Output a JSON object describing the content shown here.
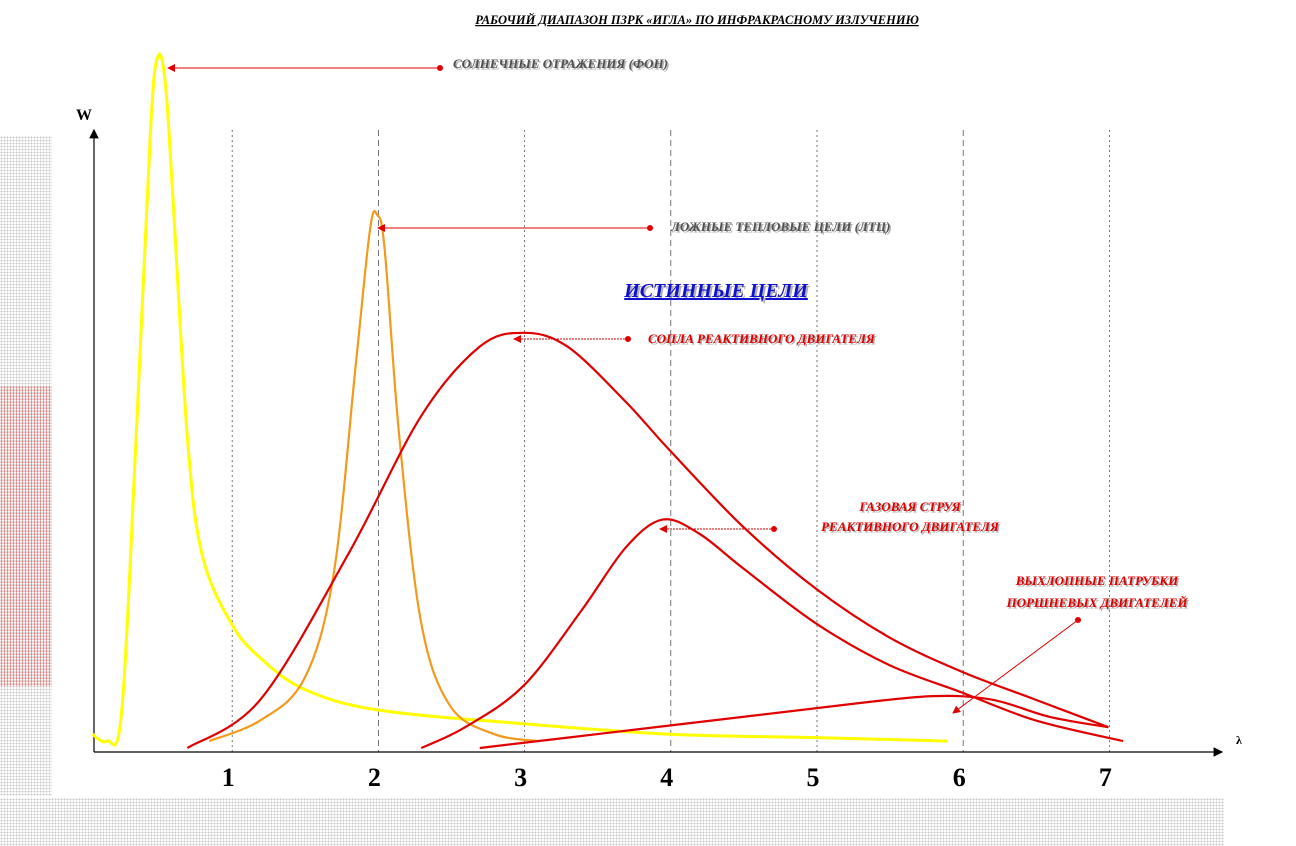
{
  "chart_data": {
    "type": "line",
    "title": "РАБОЧИЙ ДИАПАЗОН ПЗРК «ИГЛА» ПО ИНФРАКРАСНОМУ ИЗЛУЧЕНИЮ",
    "xlabel": "λ",
    "ylabel": "W",
    "xlim": [
      0,
      7.8
    ],
    "x_ticks": [
      "1",
      "2",
      "3",
      "4",
      "5",
      "6",
      "7"
    ],
    "group_label": "ИСТИННЫЕ ЦЕЛИ",
    "colors": {
      "yellow": "#ffff00",
      "orange": "#f39a1d",
      "red": "#e00000",
      "dark_red": "#cc0000",
      "title": "#000000",
      "group": "#1010d0"
    },
    "series": [
      {
        "name": "СОЛНЕЧНЫЕ ОТРАЖЕНИЯ (ФОН)",
        "color": "#ffff00",
        "x": [
          0.05,
          0.15,
          0.25,
          0.35,
          0.45,
          0.5,
          0.55,
          0.6,
          0.7,
          0.8,
          1.0,
          1.2,
          1.5,
          2.0,
          3.0,
          4.0,
          5.0,
          5.9
        ],
        "y": [
          0.02,
          0.01,
          0.05,
          0.45,
          0.9,
          1.0,
          0.96,
          0.8,
          0.45,
          0.28,
          0.18,
          0.13,
          0.085,
          0.055,
          0.035,
          0.02,
          0.015,
          0.01
        ]
      },
      {
        "name": "ЛОЖНЫЕ ТЕПЛОВЫЕ ЦЕЛИ (ЛТЦ)",
        "color": "#f39a1d",
        "x": [
          0.85,
          1.2,
          1.5,
          1.7,
          1.85,
          1.95,
          2.0,
          2.05,
          2.15,
          2.3,
          2.5,
          2.8,
          3.1
        ],
        "y": [
          0.01,
          0.04,
          0.1,
          0.25,
          0.55,
          0.75,
          0.77,
          0.72,
          0.45,
          0.18,
          0.06,
          0.02,
          0.01
        ]
      },
      {
        "name": "СОПЛА РЕАКТИВНОГО ДВИГАТЕЛЯ",
        "color": "#e00000",
        "x": [
          0.7,
          1.2,
          1.8,
          2.3,
          2.7,
          3.0,
          3.3,
          3.7,
          4.0,
          4.5,
          5.0,
          5.5,
          6.0,
          6.5,
          7.0
        ],
        "y": [
          0.0,
          0.07,
          0.28,
          0.48,
          0.58,
          0.6,
          0.58,
          0.5,
          0.43,
          0.32,
          0.23,
          0.16,
          0.11,
          0.07,
          0.03
        ]
      },
      {
        "name": "ГАЗОВАЯ СТРУЯ РЕАКТИВНОГО ДВИГАТЕЛЯ",
        "color": "#e00000",
        "x": [
          2.3,
          2.6,
          3.0,
          3.4,
          3.7,
          3.95,
          4.2,
          4.5,
          5.0,
          5.5,
          6.0,
          6.5,
          7.1
        ],
        "y": [
          0.0,
          0.03,
          0.09,
          0.2,
          0.29,
          0.33,
          0.31,
          0.26,
          0.18,
          0.12,
          0.08,
          0.04,
          0.01
        ]
      },
      {
        "name": "ВЫХЛОПНЫЕ ПАТРУБКИ ПОРШНЕВЫХ ДВИГАТЕЛЕЙ",
        "color": "#e00000",
        "x": [
          2.7,
          3.5,
          4.5,
          5.3,
          5.8,
          6.2,
          6.6,
          7.0
        ],
        "y": [
          0.0,
          0.02,
          0.045,
          0.065,
          0.075,
          0.07,
          0.045,
          0.03
        ]
      }
    ],
    "annotations": [
      {
        "text": "СОЛНЕЧНЫЕ ОТРАЖЕНИЯ  (ФОН)",
        "color": "#505050"
      },
      {
        "text": "ЛОЖНЫЕ ТЕПЛОВЫЕ ЦЕЛИ (ЛТЦ)",
        "color": "#505050"
      },
      {
        "text": "СОПЛА РЕАКТИВНОГО  ДВИГАТЕЛЯ",
        "color": "#e00000"
      },
      {
        "text": "ГАЗОВАЯ  СТРУЯ",
        "color": "#e00000"
      },
      {
        "text": "РЕАКТИВНОГО  ДВИГАТЕЛЯ",
        "color": "#e00000"
      },
      {
        "text": "ВЫХЛОПНЫЕ  ПАТРУБКИ",
        "color": "#e00000"
      },
      {
        "text": "ПОРШНЕВЫХ   ДВИГАТЕЛЕЙ",
        "color": "#e00000"
      }
    ]
  }
}
